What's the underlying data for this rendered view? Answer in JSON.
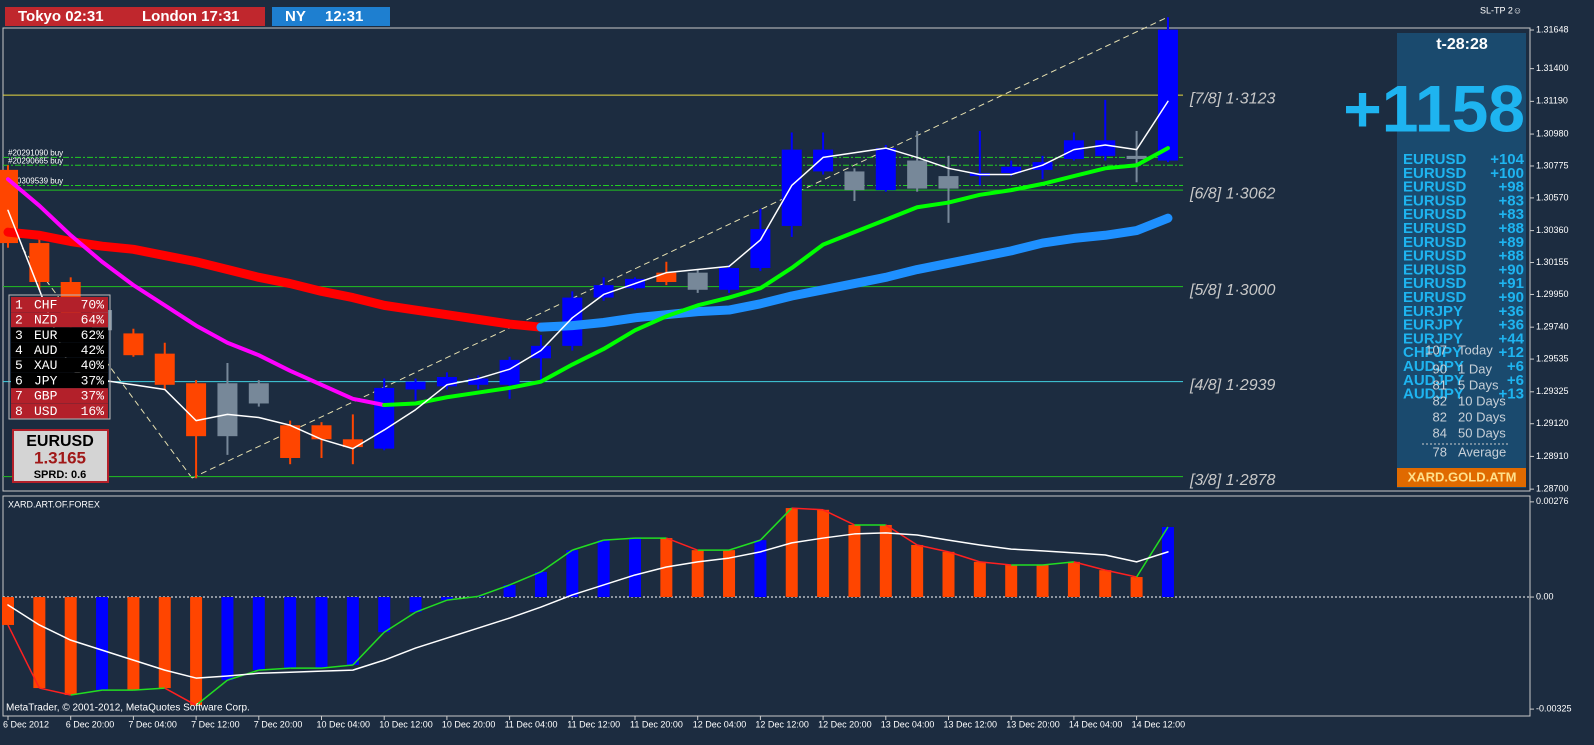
{
  "clocks": {
    "tokyo": "Tokyo 02:31",
    "london": "London 17:31",
    "ny_label": "NY",
    "ny_time": "12:31"
  },
  "corner_label": "SL-TP 2☺",
  "footer": "MetaTrader, © 2001-2012, MetaQuotes Software Corp.",
  "chart_data": [
    {
      "type": "candlestick",
      "categories": [
        "6 Dec 2012",
        null,
        "6 Dec 20:00",
        null,
        "7 Dec 04:00",
        null,
        "7 Dec 12:00",
        null,
        "7 Dec 20:00",
        null,
        "10 Dec 04:00",
        null,
        "10 Dec 12:00",
        null,
        "10 Dec 20:00",
        null,
        "11 Dec 04:00",
        null,
        "11 Dec 12:00",
        null,
        "11 Dec 20:00",
        null,
        "12 Dec 04:00",
        null,
        "12 Dec 12:00",
        null,
        "12 Dec 20:00",
        null,
        "13 Dec 04:00",
        null,
        "13 Dec 12:00",
        null,
        "13 Dec 20:00",
        null,
        "14 Dec 04:00",
        null,
        "14 Dec 12:00",
        null
      ],
      "open": [
        1.3075,
        1.3028,
        1.3003,
        1.2985,
        1.297,
        1.2957,
        1.2938,
        1.2904,
        1.2925,
        1.2911,
        1.2911,
        1.2902,
        1.2896,
        1.2934,
        1.2936,
        1.2937,
        1.2937,
        1.2954,
        1.2962,
        1.2993,
        1.2999,
        1.3009,
        1.2998,
        1.2998,
        1.3012,
        1.3039,
        1.3074,
        1.3074,
        1.3062,
        1.3063,
        1.3063,
        1.3071,
        1.3073,
        1.3075,
        1.3082,
        1.3084,
        1.3082,
        1.3081
      ],
      "high": [
        1.3078,
        1.3034,
        1.3006,
        1.2991,
        1.2973,
        1.2964,
        1.294,
        1.2951,
        1.294,
        1.2914,
        1.2913,
        1.2918,
        1.2941,
        1.2941,
        1.2945,
        1.2943,
        1.2955,
        1.2969,
        1.2997,
        1.3006,
        1.3006,
        1.3016,
        1.3011,
        1.3014,
        1.305,
        1.3099,
        1.3099,
        1.3076,
        1.3091,
        1.31,
        1.3084,
        1.31,
        1.3081,
        1.3084,
        1.3099,
        1.312,
        1.31,
        1.3173
      ],
      "low": [
        1.3025,
        1.2998,
        1.2974,
        1.2966,
        1.2955,
        1.2934,
        1.2877,
        1.2892,
        1.2923,
        1.2886,
        1.289,
        1.2886,
        1.2895,
        1.2927,
        1.2934,
        1.2934,
        1.2928,
        1.294,
        1.2959,
        1.2991,
        1.2998,
        1.3001,
        1.2996,
        1.2996,
        1.301,
        1.3032,
        1.3072,
        1.3055,
        1.3061,
        1.3061,
        1.3041,
        1.3065,
        1.3071,
        1.3069,
        1.3081,
        1.3081,
        1.3067,
        1.308
      ],
      "close": [
        1.3028,
        1.3003,
        1.2977,
        1.2972,
        1.2956,
        1.2937,
        1.2904,
        1.2938,
        1.2938,
        1.289,
        1.2902,
        1.2897,
        1.2935,
        1.2939,
        1.2942,
        1.2941,
        1.2953,
        1.2962,
        1.2993,
        1.3001,
        1.3005,
        1.3003,
        1.3009,
        1.3012,
        1.3037,
        1.3088,
        1.3088,
        1.3062,
        1.3089,
        1.3081,
        1.3071,
        1.3073,
        1.3077,
        1.308,
        1.3094,
        1.3094,
        1.3084,
        1.3165
      ],
      "candle_colors": [
        "#ff4500",
        "#ff4500",
        "#ff4500",
        "#778899",
        "#ff4500",
        "#ff4500",
        "#ff4500",
        "#778899",
        "#778899",
        "#ff4500",
        "#ff4500",
        "#ff4500",
        "#0000ff",
        "#0000ff",
        "#0000ff",
        "#0000ff",
        "#0000ff",
        "#0000ff",
        "#0000ff",
        "#0000ff",
        "#0000ff",
        "#ff4500",
        "#778899",
        "#0000ff",
        "#0000ff",
        "#0000ff",
        "#0000ff",
        "#778899",
        "#0000ff",
        "#778899",
        "#778899",
        "#0000ff",
        "#0000ff",
        "#0000ff",
        "#0000ff",
        "#0000ff",
        "#778899",
        "#0000ff"
      ],
      "series": [
        {
          "color": "#ff0000",
          "values": [
            1.3035,
            1.3033,
            1.3029,
            1.3026,
            1.3024,
            1.302,
            1.3016,
            1.3011,
            1.3006,
            1.3002,
            1.2997,
            1.2993,
            1.2988,
            1.2985,
            1.2982,
            1.2979,
            1.2976,
            1.2974,
            null,
            null,
            null,
            null,
            null,
            null,
            null,
            null,
            null,
            null,
            null,
            null,
            null,
            null,
            null,
            null,
            null,
            null,
            null,
            null
          ]
        },
        {
          "color": "#ff00ff",
          "values": [
            1.3069,
            1.3052,
            1.3033,
            1.3016,
            1.3001,
            1.2988,
            1.2975,
            1.2964,
            1.2956,
            1.2946,
            1.2937,
            1.2928,
            1.2924,
            null,
            null,
            null,
            null,
            null,
            null,
            null,
            null,
            null,
            null,
            null,
            null,
            null,
            null,
            null,
            null,
            null,
            null,
            null,
            null,
            null,
            null,
            null,
            null,
            null
          ]
        },
        {
          "color": "#1e90ff",
          "values": [
            null,
            null,
            null,
            null,
            null,
            null,
            null,
            null,
            null,
            null,
            null,
            null,
            null,
            null,
            null,
            null,
            null,
            1.2974,
            1.2975,
            1.2977,
            1.298,
            1.2982,
            1.2984,
            1.2985,
            1.2989,
            1.2994,
            1.2998,
            1.3002,
            1.3006,
            1.3011,
            1.3015,
            1.3019,
            1.3023,
            1.3028,
            1.3031,
            1.3033,
            1.3036,
            1.3044
          ]
        },
        {
          "color": "#00ff00",
          "values": [
            null,
            null,
            null,
            null,
            null,
            null,
            null,
            null,
            null,
            null,
            null,
            null,
            1.2924,
            1.2925,
            1.2929,
            1.2932,
            1.2935,
            1.2939,
            1.295,
            1.296,
            1.2972,
            1.2981,
            1.2988,
            1.2993,
            1.2999,
            1.3012,
            1.3027,
            1.3035,
            1.3043,
            1.3051,
            1.3054,
            1.3059,
            1.3062,
            1.3066,
            1.3071,
            1.3076,
            1.3078,
            1.3089
          ]
        },
        {
          "color": "#ffffff",
          "values": [
            1.3049,
            1.2998,
            1.2946,
            1.294,
            1.2937,
            1.2934,
            1.2914,
            1.2918,
            1.2916,
            1.2911,
            1.2902,
            1.2896,
            1.2908,
            1.2921,
            1.2937,
            1.2941,
            1.2947,
            1.2959,
            1.298,
            1.2995,
            1.3002,
            1.3009,
            1.3011,
            1.3013,
            1.303,
            1.3065,
            1.3083,
            1.3086,
            1.3089,
            1.3083,
            1.3076,
            1.3072,
            1.3072,
            1.3078,
            1.3088,
            1.3091,
            1.3088,
            1.3119
          ]
        }
      ],
      "levels": [
        {
          "label": "[7/8] 1·3123",
          "value": 1.3123,
          "color": "#e8d840"
        },
        {
          "label": "[6/8] 1·3062",
          "value": 1.3062,
          "color": "#20c020"
        },
        {
          "label": "[5/8] 1·3000",
          "value": 1.3,
          "color": "#20c020"
        },
        {
          "label": "[4/8] 1·2939",
          "value": 1.2939,
          "color": "#40d0e0"
        },
        {
          "label": "[3/8] 1·2878",
          "value": 1.2878,
          "color": "#20c020"
        }
      ],
      "orders": [
        {
          "label": "#20291090 buy",
          "value": 1.3083
        },
        {
          "label": "#20290665 buy",
          "value": 1.3078
        },
        {
          "label": "#20309539 buy",
          "value": 1.3065
        }
      ],
      "ylim": [
        1.28688,
        1.31661
      ],
      "yticks": [
        1.31648,
        {
          "value": 1.314,
          "label": "1.31400"
        },
        {
          "value": 1.3119,
          "label": "1.31190"
        },
        {
          "value": 1.3098,
          "label": "1.30980"
        },
        1.30775,
        {
          "value": 1.3057,
          "label": "1.30570"
        },
        {
          "value": 1.3036,
          "label": "1.30360"
        },
        1.30155,
        {
          "value": 1.2995,
          "label": "1.29950"
        },
        {
          "value": 1.2974,
          "label": "1.29740"
        },
        1.29535,
        1.29325,
        {
          "value": 1.2912,
          "label": "1.29120"
        },
        {
          "value": 1.2891,
          "label": "1.28910"
        },
        {
          "value": 1.287,
          "label": "1.28700"
        }
      ]
    },
    {
      "type": "bar",
      "title": "XARD.ART.OF.FOREX",
      "values": [
        -0.00081,
        -0.00264,
        -0.00284,
        -0.0027,
        -0.0027,
        -0.00264,
        -0.00314,
        -0.00241,
        -0.00212,
        -0.00206,
        -0.00206,
        -0.00197,
        -0.00102,
        -0.00044,
        -9e-05,
        2e-05,
        0.00035,
        0.00073,
        0.00136,
        0.00165,
        0.00171,
        0.00171,
        0.00136,
        0.00136,
        0.00165,
        0.00258,
        0.00253,
        0.00209,
        0.00209,
        0.00151,
        0.00131,
        0.00102,
        0.00093,
        0.00093,
        0.00102,
        0.00078,
        0.00058,
        0.00203
      ],
      "colors": [
        "#ff4500",
        "#ff4500",
        "#ff4500",
        "#0000ff",
        "#ff4500",
        "#ff4500",
        "#ff4500",
        "#0000ff",
        "#0000ff",
        "#0000ff",
        "#0000ff",
        "#0000ff",
        "#0000ff",
        "#0000ff",
        "#0000ff",
        "#0000ff",
        "#0000ff",
        "#0000ff",
        "#0000ff",
        "#0000ff",
        "#0000ff",
        "#ff4500",
        "#ff4500",
        "#ff4500",
        "#0000ff",
        "#ff4500",
        "#ff4500",
        "#ff4500",
        "#ff4500",
        "#ff4500",
        "#ff4500",
        "#ff4500",
        "#ff4500",
        "#ff4500",
        "#ff4500",
        "#ff4500",
        "#ff4500",
        "#0000ff"
      ],
      "series": [
        {
          "color": "#ffffff",
          "values": [
            -0.00023,
            -0.00081,
            -0.00125,
            -0.00154,
            -0.00183,
            -0.00212,
            -0.00235,
            -0.00229,
            -0.00221,
            -0.00218,
            -0.00215,
            -0.00212,
            -0.00183,
            -0.00148,
            -0.00119,
            -0.0009,
            -0.00061,
            -0.00029,
            6e-05,
            0.00035,
            0.00064,
            0.00087,
            0.00102,
            0.00113,
            0.00131,
            0.00157,
            0.00171,
            0.00183,
            0.00186,
            0.0018,
            0.00165,
            0.00151,
            0.00139,
            0.00134,
            0.00128,
            0.00122,
            0.00102,
            0.00131
          ]
        }
      ],
      "ylim": [
        -0.00345,
        0.00293
      ],
      "yticks": [
        0.00276,
        {
          "value": 0,
          "label": "0.00"
        },
        -0.00325
      ]
    }
  ],
  "strength": {
    "rows": [
      [
        "1",
        "CHF",
        "70%"
      ],
      [
        "2",
        "NZD",
        "64%"
      ],
      [
        "3",
        "EUR",
        "62%"
      ],
      [
        "4",
        "AUD",
        "42%"
      ],
      [
        "5",
        "XAU",
        "40%"
      ],
      [
        "6",
        "JPY",
        "37%"
      ],
      [
        "7",
        "GBP",
        "37%"
      ],
      [
        "8",
        "USD",
        "16%"
      ]
    ],
    "row_colors": [
      "#b3202a",
      "#b3202a",
      "#000000",
      "#000000",
      "#000000",
      "#000000",
      "#b3202a",
      "#b3202a"
    ]
  },
  "quote": {
    "symbol": "EURUSD",
    "price": "1.3165",
    "spread": "SPRD: 0.6"
  },
  "stats": {
    "timer": "t-28:28",
    "total": "+1158",
    "pairs": [
      [
        "EURUSD",
        "+104"
      ],
      [
        "EURUSD",
        "+100"
      ],
      [
        "EURUSD",
        "+98"
      ],
      [
        "EURUSD",
        "+83"
      ],
      [
        "EURUSD",
        "+83"
      ],
      [
        "EURUSD",
        "+88"
      ],
      [
        "EURUSD",
        "+89"
      ],
      [
        "EURUSD",
        "+88"
      ],
      [
        "EURUSD",
        "+90"
      ],
      [
        "EURUSD",
        "+91"
      ],
      [
        "EURUSD",
        "+90"
      ],
      [
        "EURJPY",
        "+36"
      ],
      [
        "EURJPY",
        "+36"
      ],
      [
        "EURJPY",
        "+44"
      ],
      [
        "CHFJPY",
        "+12"
      ],
      [
        "AUDJPY",
        "+6"
      ],
      [
        "AUDJPY",
        "+6"
      ],
      [
        "AUDJPY",
        "+13"
      ]
    ],
    "ranges": [
      [
        "107",
        "Today"
      ],
      [
        "90",
        "1 Day"
      ],
      [
        "81",
        "5 Days"
      ],
      [
        "82",
        "10 Days"
      ],
      [
        "82",
        "20 Days"
      ],
      [
        "84",
        "50 Days"
      ],
      [
        "78",
        "Average"
      ]
    ],
    "brand": "XARD.GOLD.ATM"
  }
}
